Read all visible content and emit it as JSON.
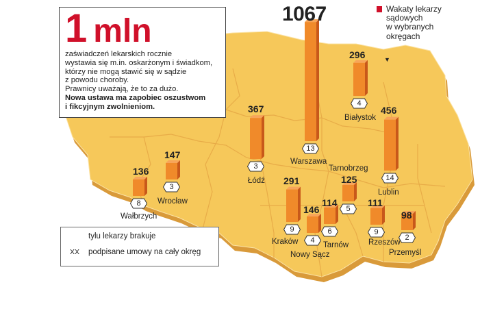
{
  "headline": {
    "number": "1",
    "unit": "mln",
    "lines": [
      "zaświadczeń lekarskich rocznie",
      "wystawia się m.in. oskarżonym i świadkom,",
      "którzy nie mogą stawić się w sądzie",
      "z powodu choroby.",
      "Prawnicy uważają, że to za dużo."
    ],
    "bold_lines": [
      "Nowa ustawa ma zapobiec oszustwom",
      "i fikcyjnym zwolnieniom."
    ]
  },
  "legend_top": {
    "text": "Wakaty lekarzy\nsądowych\nw wybranych\nokręgach",
    "color": "#d0102a"
  },
  "legend_bottom": {
    "bar_label": "tylu lekarzy brakuje",
    "badge_sample": "XX",
    "badge_label": "podpisane umowy na cały okręg"
  },
  "colors": {
    "map_fill": "#f6c85a",
    "map_border": "#e0a83c",
    "bar_front": "#f08a2a",
    "bar_side": "#c8581a"
  },
  "cities": [
    {
      "name": "Warszawa",
      "vacancies": 1067,
      "contracts": 13
    },
    {
      "name": "Białystok",
      "vacancies": 296,
      "contracts": 4
    },
    {
      "name": "Lublin",
      "vacancies": 456,
      "contracts": 14
    },
    {
      "name": "Łódź",
      "vacancies": 367,
      "contracts": 3
    },
    {
      "name": "Wrocław",
      "vacancies": 147,
      "contracts": 3
    },
    {
      "name": "Wałbrzych",
      "vacancies": 136,
      "contracts": 8
    },
    {
      "name": "Kraków",
      "vacancies": 291,
      "contracts": 9
    },
    {
      "name": "Nowy Sącz",
      "vacancies": 146,
      "contracts": 4
    },
    {
      "name": "Tarnów",
      "vacancies": 114,
      "contracts": 6
    },
    {
      "name": "Tarnobrzeg",
      "vacancies": 125,
      "contracts": 5
    },
    {
      "name": "Rzeszów",
      "vacancies": 111,
      "contracts": 9
    },
    {
      "name": "Przemyśl",
      "vacancies": 98,
      "contracts": 2
    }
  ]
}
